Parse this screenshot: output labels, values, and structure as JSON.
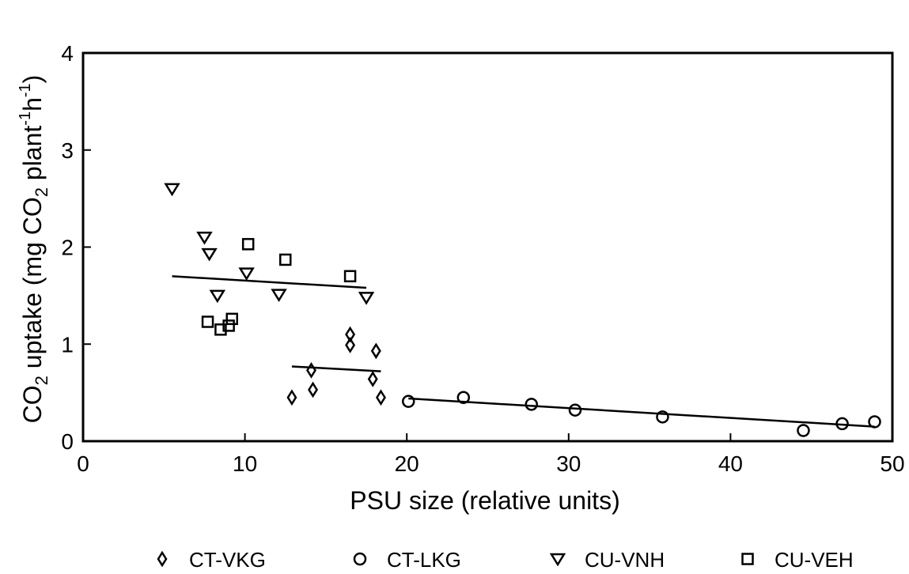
{
  "chart_data": {
    "type": "scatter",
    "xlabel": "PSU size (relative units)",
    "ylabel": {
      "prefix": "CO",
      "sub": "2",
      "middle": " uptake (mg CO",
      "sub2": "2",
      "middle2": " plant",
      "sup1": "-1",
      "middle3": "h",
      "sup2": "-1",
      "suffix": ")"
    },
    "xlim": [
      0,
      50
    ],
    "ylim": [
      0,
      4
    ],
    "x_ticks": [
      "0",
      "10",
      "20",
      "30",
      "40",
      "50"
    ],
    "y_ticks": [
      "0",
      "1",
      "2",
      "3",
      "4"
    ],
    "grid": false,
    "legend_position": "bottom",
    "series": [
      {
        "name": "CT-VKG",
        "marker": "diamond",
        "points": [
          [
            12.9,
            0.45
          ],
          [
            14.1,
            0.73
          ],
          [
            14.2,
            0.53
          ],
          [
            16.5,
            1.1
          ],
          [
            16.5,
            0.99
          ],
          [
            17.9,
            0.64
          ],
          [
            18.1,
            0.93
          ],
          [
            18.4,
            0.45
          ]
        ]
      },
      {
        "name": "CT-LKG",
        "marker": "circle",
        "points": [
          [
            20.1,
            0.41
          ],
          [
            23.5,
            0.45
          ],
          [
            27.7,
            0.38
          ],
          [
            30.4,
            0.32
          ],
          [
            35.8,
            0.25
          ],
          [
            44.5,
            0.11
          ],
          [
            46.9,
            0.18
          ],
          [
            48.9,
            0.2
          ]
        ]
      },
      {
        "name": "CU-VNH",
        "marker": "triangle-down",
        "points": [
          [
            5.5,
            2.6
          ],
          [
            7.5,
            2.1
          ],
          [
            7.8,
            1.93
          ],
          [
            8.3,
            1.5
          ],
          [
            10.1,
            1.73
          ],
          [
            12.1,
            1.51
          ],
          [
            17.5,
            1.48
          ]
        ]
      },
      {
        "name": "CU-VEH",
        "marker": "square",
        "points": [
          [
            7.7,
            1.23
          ],
          [
            8.5,
            1.15
          ],
          [
            9.0,
            1.19
          ],
          [
            9.2,
            1.26
          ],
          [
            10.2,
            2.03
          ],
          [
            12.5,
            1.87
          ],
          [
            16.5,
            1.7
          ]
        ]
      }
    ],
    "fit_lines": [
      {
        "series": "CU-VNH/CU-VEH",
        "x": [
          5.5,
          17.5
        ],
        "y": [
          1.7,
          1.58
        ]
      },
      {
        "series": "CT-VKG",
        "x": [
          12.9,
          18.4
        ],
        "y": [
          0.77,
          0.72
        ]
      },
      {
        "series": "CT-LKG",
        "x": [
          20.1,
          48.9
        ],
        "y": [
          0.44,
          0.15
        ]
      }
    ]
  }
}
